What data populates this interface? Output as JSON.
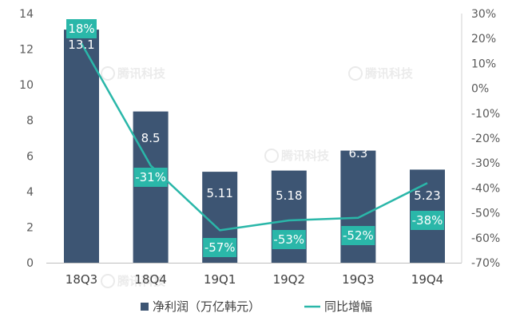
{
  "chart_data": {
    "type": "bar",
    "categories": [
      "18Q3",
      "18Q4",
      "19Q1",
      "19Q2",
      "19Q3",
      "19Q4"
    ],
    "series": [
      {
        "name": "净利润（万亿韩元）",
        "type": "bar",
        "axis": "left",
        "values": [
          13.1,
          8.5,
          5.11,
          5.18,
          6.3,
          5.23
        ],
        "labels": [
          "13.1",
          "8.5",
          "5.11",
          "5.18",
          "6.3",
          "5.23"
        ],
        "color": "#3d5573"
      },
      {
        "name": "同比增幅",
        "type": "line",
        "axis": "right",
        "values": [
          18,
          -31,
          -57,
          -53,
          -52,
          -38
        ],
        "labels": [
          "18%",
          "-31%",
          "-57%",
          "-53%",
          "-52%",
          "-38%"
        ],
        "color": "#2ab7a9"
      }
    ],
    "y_left": {
      "ylim": [
        0,
        14
      ],
      "ticks": [
        "0",
        "2",
        "4",
        "6",
        "8",
        "10",
        "12",
        "14"
      ]
    },
    "y_right": {
      "ylim": [
        -70,
        30
      ],
      "ticks": [
        "-70%",
        "-60%",
        "-50%",
        "-40%",
        "-30%",
        "-20%",
        "-10%",
        "0%",
        "10%",
        "20%",
        "30%"
      ]
    },
    "grid": false,
    "legend_position": "bottom",
    "watermark": "腾讯科技"
  }
}
